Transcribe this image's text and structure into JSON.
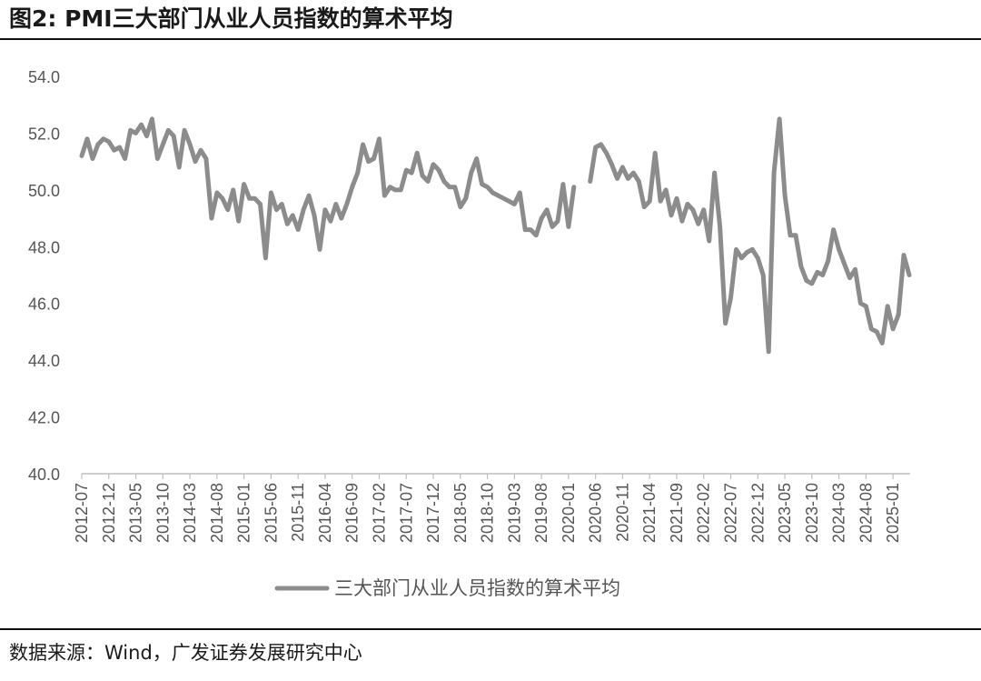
{
  "figure": {
    "title": "图2:  PMI三大部门从业人员指数的算术平均",
    "source": "数据来源：Wind，广发证券发展研究中心"
  },
  "chart_data": {
    "type": "line",
    "title": "",
    "xlabel": "",
    "ylabel": "",
    "ylim": [
      40,
      54
    ],
    "yticks": [
      "40.0",
      "42.0",
      "44.0",
      "46.0",
      "48.0",
      "50.0",
      "52.0",
      "54.0"
    ],
    "xticks": [
      "2012-07",
      "2012-12",
      "2013-05",
      "2013-10",
      "2014-03",
      "2014-08",
      "2015-01",
      "2015-06",
      "2015-11",
      "2016-04",
      "2016-09",
      "2017-02",
      "2017-07",
      "2017-12",
      "2018-05",
      "2018-10",
      "2019-03",
      "2019-08",
      "2020-01",
      "2020-06",
      "2020-11",
      "2021-04",
      "2021-09",
      "2022-02",
      "2022-07",
      "2022-12",
      "2023-05",
      "2023-10",
      "2024-03",
      "2024-08",
      "2025-01"
    ],
    "grid": false,
    "legend": "bottom-center",
    "colors": {
      "series": "#8c8c8c",
      "axis": "#bfbfbf",
      "text": "#555555"
    },
    "series": [
      {
        "name": "三大部门从业人员指数的算术平均",
        "start": "2012-07",
        "values": [
          51.2,
          51.8,
          51.1,
          51.6,
          51.8,
          51.7,
          51.4,
          51.5,
          51.1,
          52.1,
          52.0,
          52.3,
          51.9,
          52.5,
          51.1,
          51.6,
          52.1,
          51.9,
          50.8,
          52.1,
          51.6,
          51.0,
          51.4,
          51.1,
          49.0,
          49.9,
          49.7,
          49.3,
          50.0,
          48.9,
          50.2,
          49.7,
          49.7,
          49.5,
          47.6,
          49.9,
          49.3,
          49.5,
          48.8,
          49.1,
          48.6,
          49.3,
          49.8,
          49.1,
          47.9,
          49.3,
          48.9,
          49.5,
          49.0,
          49.5,
          50.1,
          50.6,
          51.6,
          51.0,
          51.1,
          51.8,
          49.8,
          50.1,
          50.0,
          50.0,
          50.7,
          50.6,
          51.3,
          50.5,
          50.3,
          50.9,
          50.7,
          50.3,
          50.1,
          50.1,
          49.4,
          49.7,
          50.6,
          51.1,
          50.2,
          50.1,
          49.9,
          49.8,
          49.7,
          49.6,
          49.5,
          49.9,
          48.6,
          48.6,
          48.4,
          49.0,
          49.3,
          48.7,
          48.9,
          50.2,
          48.7,
          50.1,
          null,
          null,
          50.3,
          51.5,
          51.6,
          51.3,
          50.9,
          50.4,
          50.8,
          50.4,
          50.6,
          50.3,
          49.4,
          49.6,
          51.3,
          49.6,
          50.0,
          49.1,
          49.7,
          48.9,
          49.5,
          49.3,
          48.8,
          49.3,
          48.2,
          50.6,
          48.7,
          45.3,
          46.2,
          47.9,
          47.6,
          47.8,
          47.9,
          47.6,
          47.0,
          44.3,
          50.6,
          52.5,
          49.8,
          48.4,
          48.4,
          47.3,
          46.8,
          46.7,
          47.1,
          47.0,
          47.5,
          48.6,
          47.9,
          47.4,
          46.9,
          47.2,
          46.0,
          45.9,
          45.1,
          45.0,
          44.6,
          45.9,
          45.1,
          45.6,
          47.7,
          47.0
        ]
      }
    ]
  }
}
